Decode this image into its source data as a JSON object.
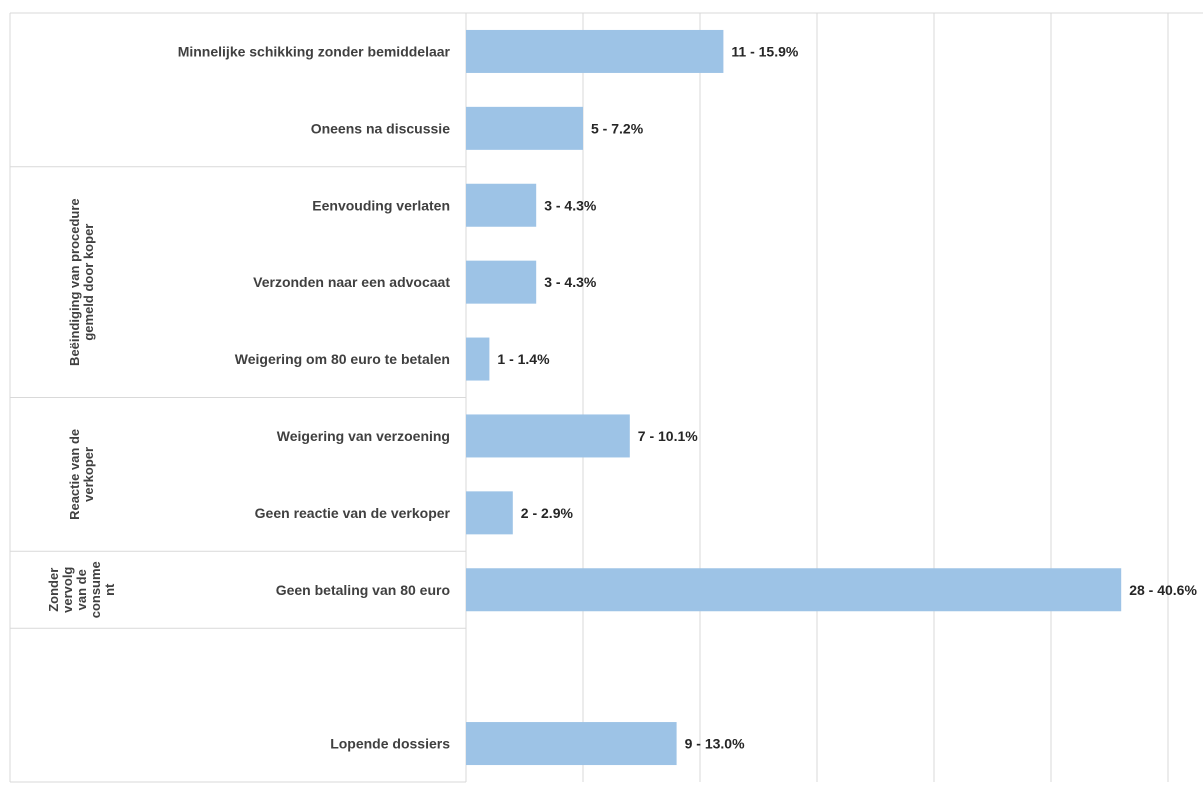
{
  "colors": {
    "bar": "#9dc3e6",
    "grid": "#d9d9d9",
    "text": "#404040"
  },
  "chart_data": {
    "type": "bar",
    "orientation": "horizontal",
    "title": "",
    "xlabel": "",
    "ylabel": "",
    "xlim": [
      0,
      30
    ],
    "grid": true,
    "legend": "none",
    "categories": [
      "Minnelijke schikking zonder bemiddelaar",
      "Oneens na discussie",
      "Eenvouding verlaten",
      "Verzonden naar een advocaat",
      "Weigering om 80 euro te betalen",
      "Weigering van verzoening",
      "Geen reactie van de verkoper",
      "Geen betaling van 80 euro",
      "",
      "Lopende dossiers"
    ],
    "values": [
      11,
      5,
      3,
      3,
      1,
      7,
      2,
      28,
      null,
      9
    ],
    "data_labels": [
      "11 - 15.9%",
      "5 - 7.2%",
      "3 - 4.3%",
      "3 - 4.3%",
      "1 - 1.4%",
      "7 - 10.1%",
      "2 - 2.9%",
      "28 - 40.6%",
      "",
      "9 - 13.0%"
    ],
    "groups": [
      {
        "label_lines": [
          ""
        ],
        "start": 0,
        "end": 1
      },
      {
        "label_lines": [
          "Beëindiging van procedure",
          "gemeld door koper"
        ],
        "start": 2,
        "end": 4
      },
      {
        "label_lines": [
          "Reactie van de",
          "verkoper"
        ],
        "start": 5,
        "end": 6
      },
      {
        "label_lines": [
          "Zonder",
          "vervolg",
          "van de",
          "consume",
          "nt"
        ],
        "start": 7,
        "end": 7
      },
      {
        "label_lines": [
          ""
        ],
        "start": 8,
        "end": 9
      }
    ]
  }
}
